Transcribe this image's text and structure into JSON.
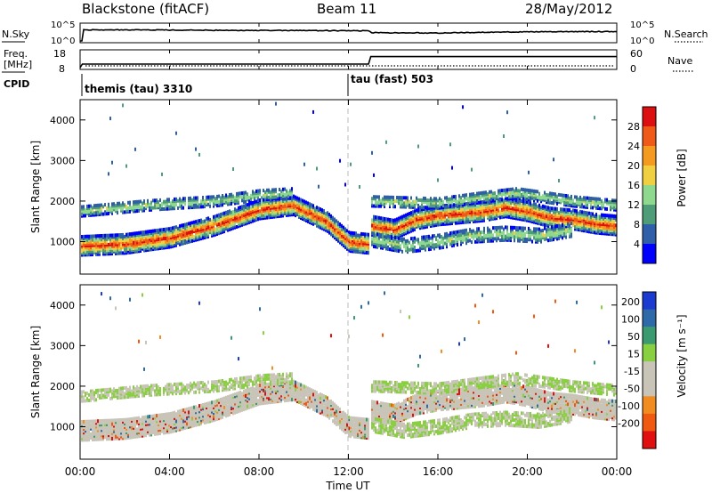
{
  "header": {
    "station": "Blackstone (fitACF)",
    "beam": "Beam 11",
    "date": "28/May/2012"
  },
  "summary_panel": {
    "nsky_label": "N.Sky",
    "nsearch_label": "N.Search",
    "freq_label": "Freq.",
    "freq_unit": "[MHz]",
    "nave_label": "Nave",
    "cpid_label": "CPID",
    "left_ticks_top": [
      "10^5",
      "10^0"
    ],
    "right_ticks_top": [
      "10^5",
      "10^0"
    ],
    "left_ticks_freq": [
      "18",
      "8"
    ],
    "right_ticks_nave": [
      "60",
      "0"
    ],
    "cpid_modes": [
      {
        "label": "themis (tau) 3310",
        "start_hour": 0
      },
      {
        "label": "tau (fast) 503",
        "start_hour": 12
      }
    ]
  },
  "x_axis": {
    "label": "Time UT",
    "ticks": [
      "00:00",
      "04:00",
      "08:00",
      "12:00",
      "16:00",
      "20:00",
      "00:00"
    ]
  },
  "colors": {
    "power": [
      "#0000ff",
      "#2e5fa8",
      "#4f9c78",
      "#8ed98e",
      "#f0d040",
      "#f59a20",
      "#ef5a18",
      "#dc1010"
    ],
    "velocity": [
      "#e01010",
      "#f05a10",
      "#f08c20",
      "#c8c4b8",
      "#c8c4b8",
      "#88d040",
      "#3c9a70",
      "#2e6aa8",
      "#1a3ad0"
    ]
  },
  "chart_data": [
    {
      "type": "line",
      "title": "Blackstone (fitACF)   Beam 11   28/May/2012",
      "xlabel": "",
      "ylabel": "N.Sky",
      "y_scale": "log",
      "ylim": [
        1,
        100000
      ],
      "series": [
        {
          "name": "N.Sky",
          "x": [
            0,
            0.1,
            2,
            4,
            6,
            8,
            10,
            12,
            12.9,
            13,
            16,
            18,
            20,
            22,
            24
          ],
          "y": [
            1000,
            3000,
            3000,
            2500,
            2200,
            2000,
            1800,
            1600,
            1500,
            400,
            300,
            500,
            700,
            800,
            900
          ]
        }
      ]
    },
    {
      "type": "line",
      "xlabel": "",
      "ylabel": "Freq. [MHz]",
      "ylim": [
        8,
        18
      ],
      "series": [
        {
          "name": "Freq.",
          "x": [
            0,
            0.1,
            12.9,
            13,
            24
          ],
          "y": [
            8,
            10.2,
            10.2,
            14.9,
            14.9
          ]
        }
      ]
    },
    {
      "type": "heatmap",
      "xlabel": "",
      "ylabel": "Slant Range [km]",
      "xlim": [
        0,
        24
      ],
      "ylim": [
        200,
        4500
      ],
      "yticks": [
        1000,
        2000,
        3000,
        4000
      ],
      "colorbar": {
        "label": "Power [dB]",
        "ticks": [
          4,
          8,
          12,
          16,
          20,
          24,
          28
        ]
      },
      "bands": [
        {
          "x": [
            0,
            2,
            4,
            6,
            8,
            9.5,
            11,
            12,
            12.9
          ],
          "y": [
            900,
            950,
            1100,
            1400,
            1800,
            1900,
            1500,
            1000,
            950
          ]
        },
        {
          "x": [
            13,
            14,
            15,
            16,
            17,
            18,
            19,
            20,
            21,
            22,
            23,
            24
          ],
          "y": [
            1400,
            1300,
            1550,
            1650,
            1700,
            1750,
            1850,
            1750,
            1600,
            1550,
            1450,
            1400
          ]
        },
        {
          "x": [
            13,
            14.5,
            16,
            17.5,
            19,
            20.5,
            22
          ],
          "y": [
            1050,
            900,
            1000,
            1150,
            1200,
            1150,
            1300
          ]
        },
        {
          "x": [
            0,
            3,
            6,
            8,
            9.5
          ],
          "y": [
            1750,
            1900,
            2000,
            2150,
            2200
          ]
        },
        {
          "x": [
            13,
            16,
            18,
            19.5,
            22,
            24
          ],
          "y": [
            2000,
            1950,
            2100,
            2200,
            2000,
            1900
          ]
        }
      ]
    },
    {
      "type": "heatmap",
      "xlabel": "Time UT",
      "ylabel": "Slant Range [km]",
      "xlim": [
        0,
        24
      ],
      "ylim": [
        200,
        4500
      ],
      "yticks": [
        1000,
        2000,
        3000,
        4000
      ],
      "colorbar": {
        "label": "Velocity [m s⁻¹]",
        "ticks": [
          200,
          100,
          50,
          15,
          -15,
          -50,
          -100,
          -200
        ]
      },
      "bands": [
        {
          "x": [
            0,
            2,
            4,
            6,
            8,
            9.5,
            11,
            12,
            12.9
          ],
          "y": [
            900,
            950,
            1100,
            1400,
            1800,
            1900,
            1500,
            1000,
            950
          ]
        },
        {
          "x": [
            13,
            14,
            15,
            16,
            17,
            18,
            19,
            20,
            21,
            22,
            23,
            24
          ],
          "y": [
            1400,
            1300,
            1550,
            1650,
            1700,
            1750,
            1850,
            1750,
            1600,
            1550,
            1450,
            1400
          ]
        },
        {
          "x": [
            13,
            14.5,
            16,
            17.5,
            19,
            20.5,
            22
          ],
          "y": [
            1050,
            900,
            1000,
            1150,
            1200,
            1150,
            1300
          ]
        },
        {
          "x": [
            0,
            3,
            6,
            8,
            9.5
          ],
          "y": [
            1750,
            1900,
            2000,
            2150,
            2200
          ]
        },
        {
          "x": [
            13,
            16,
            18,
            19.5,
            22,
            24
          ],
          "y": [
            2000,
            1950,
            2100,
            2200,
            2000,
            1900
          ]
        }
      ]
    }
  ]
}
